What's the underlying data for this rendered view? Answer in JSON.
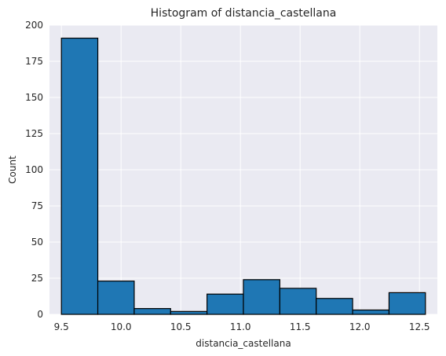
{
  "chart_data": {
    "type": "bar",
    "title": "Histogram of distancia_castellana",
    "xlabel": "distancia_castellana",
    "ylabel": "Count",
    "xlim": [
      9.4,
      12.65
    ],
    "ylim": [
      0,
      200
    ],
    "grid": true,
    "bin_edges": [
      9.5,
      9.805,
      10.11,
      10.415,
      10.72,
      11.025,
      11.33,
      11.635,
      11.94,
      12.245,
      12.55
    ],
    "values": [
      191,
      23,
      4,
      2,
      14,
      24,
      18,
      11,
      3,
      15
    ],
    "x_ticks": [
      9.5,
      10.0,
      10.5,
      11.0,
      11.5,
      12.0,
      12.5
    ],
    "x_tick_labels": [
      "9.5",
      "10.0",
      "10.5",
      "11.0",
      "11.5",
      "12.0",
      "12.5"
    ],
    "y_ticks": [
      0,
      25,
      50,
      75,
      100,
      125,
      150,
      175,
      200
    ],
    "y_tick_labels": [
      "0",
      "25",
      "50",
      "75",
      "100",
      "125",
      "150",
      "175",
      "200"
    ],
    "colors": {
      "bar": "#1f77b4",
      "edge": "#000000",
      "background": "#eaeaf2",
      "grid": "#ffffff"
    }
  }
}
